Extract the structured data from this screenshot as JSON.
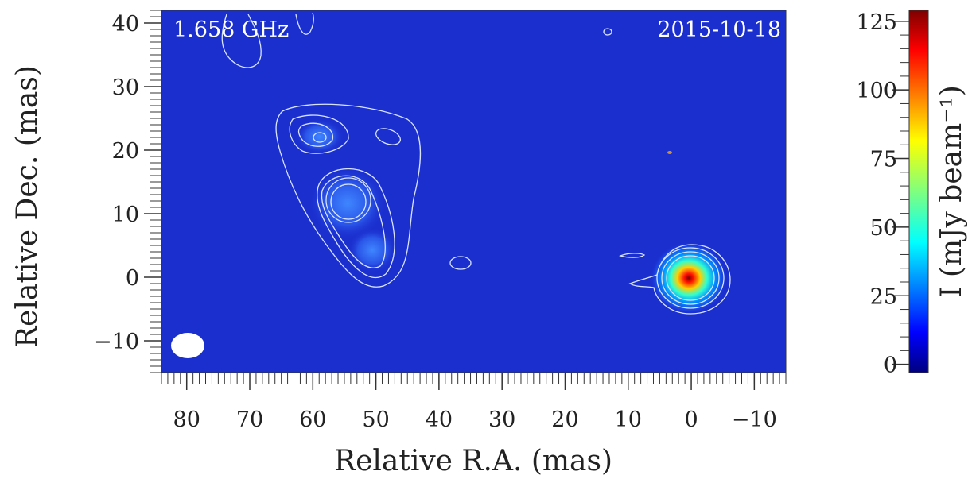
{
  "chart_data": {
    "type": "image",
    "annotations": [
      "1.658 GHz",
      "2015-10-18"
    ],
    "xlabel": "Relative R.A. (mas)",
    "ylabel": "Relative Dec. (mas)",
    "xlim": [
      84,
      -15
    ],
    "ylim": [
      -15,
      42
    ],
    "xticks": [
      80,
      70,
      60,
      50,
      40,
      30,
      20,
      10,
      0,
      {
        "value": -10,
        "label": "−10"
      }
    ],
    "yticks": [
      {
        "value": -10,
        "label": "−10"
      },
      0,
      10,
      20,
      30,
      40
    ],
    "xminor": 1,
    "yminor": 1,
    "colorbar": {
      "label": "I (mJy beam⁻¹)",
      "lim": [
        -3,
        129
      ],
      "ticks": [
        0,
        25,
        50,
        75,
        100,
        125
      ],
      "minor": 5,
      "colormap": "jet"
    }
  }
}
